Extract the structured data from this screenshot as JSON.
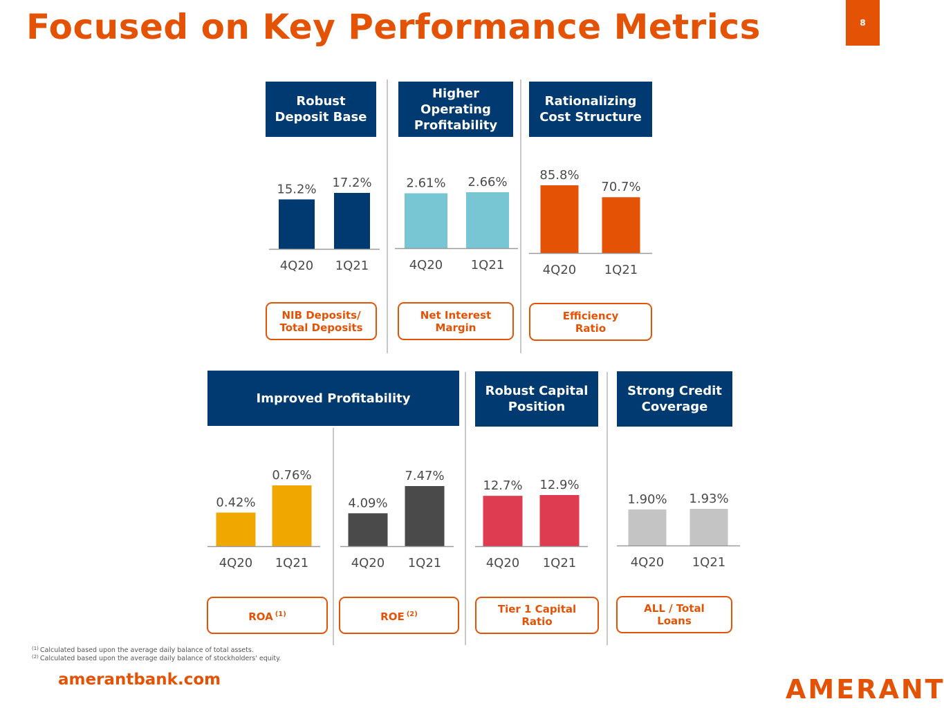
{
  "slide": {
    "title": "Focused on Key Performance Metrics",
    "page_number": "8",
    "website": "amerantbank.com",
    "logo_text": "AMERANT",
    "footnotes": [
      {
        "marker": "(1)",
        "text": "Calculated based upon the average daily balance of total assets."
      },
      {
        "marker": "(2)",
        "text": "Calculated based upon the average daily balance of stockholders' equity."
      }
    ]
  },
  "sections": {
    "deposit": {
      "header": [
        "Robust",
        "Deposit Base"
      ],
      "metric": [
        "NIB Deposits/",
        "Total Deposits"
      ]
    },
    "operating": {
      "header": [
        "Higher",
        "Operating",
        "Profitability"
      ],
      "metric": [
        "Net Interest",
        "Margin"
      ]
    },
    "cost": {
      "header": [
        "Rationalizing",
        "Cost Structure"
      ],
      "metric": [
        "Efficiency",
        "Ratio"
      ]
    },
    "profit": {
      "header": [
        "Improved Profitability"
      ],
      "metric_roa": "ROA",
      "metric_roa_note": "(1)",
      "metric_roe": "ROE",
      "metric_roe_note": "(2)"
    },
    "capital": {
      "header": [
        "Robust Capital",
        "Position"
      ],
      "metric": [
        "Tier 1 Capital",
        "Ratio"
      ]
    },
    "credit": {
      "header": [
        "Strong Credit",
        "Coverage"
      ],
      "metric": [
        "ALL / Total",
        "Loans"
      ]
    }
  },
  "colors": {
    "accent": "#e35205",
    "navy": "#003a70",
    "light_blue": "#78c5d4",
    "gold": "#f0a800",
    "dark_gray": "#4a4a4a",
    "red": "#de3c50",
    "light_gray": "#c4c4c4"
  },
  "chart_data": [
    {
      "id": "nib",
      "type": "bar",
      "title": "NIB Deposits/ Total Deposits",
      "categories": [
        "4Q20",
        "1Q21"
      ],
      "values": [
        15.2,
        17.2
      ],
      "labels": [
        "15.2%",
        "17.2%"
      ],
      "unit": "%",
      "color": "#003a70"
    },
    {
      "id": "nim",
      "type": "bar",
      "title": "Net Interest Margin",
      "categories": [
        "4Q20",
        "1Q21"
      ],
      "values": [
        2.61,
        2.66
      ],
      "labels": [
        "2.61%",
        "2.66%"
      ],
      "unit": "%",
      "color": "#78c5d4"
    },
    {
      "id": "eff",
      "type": "bar",
      "title": "Efficiency Ratio",
      "categories": [
        "4Q20",
        "1Q21"
      ],
      "values": [
        85.8,
        70.7
      ],
      "labels": [
        "85.8%",
        "70.7%"
      ],
      "unit": "%",
      "color": "#e35205"
    },
    {
      "id": "roa",
      "type": "bar",
      "title": "ROA (1)",
      "categories": [
        "4Q20",
        "1Q21"
      ],
      "values": [
        0.42,
        0.76
      ],
      "labels": [
        "0.42%",
        "0.76%"
      ],
      "unit": "%",
      "color": "#f0a800"
    },
    {
      "id": "roe",
      "type": "bar",
      "title": "ROE (2)",
      "categories": [
        "4Q20",
        "1Q21"
      ],
      "values": [
        4.09,
        7.47
      ],
      "labels": [
        "4.09%",
        "7.47%"
      ],
      "unit": "%",
      "color": "#4a4a4a"
    },
    {
      "id": "tier1",
      "type": "bar",
      "title": "Tier 1 Capital Ratio",
      "categories": [
        "4Q20",
        "1Q21"
      ],
      "values": [
        12.7,
        12.9
      ],
      "labels": [
        "12.7%",
        "12.9%"
      ],
      "unit": "%",
      "color": "#de3c50"
    },
    {
      "id": "all",
      "type": "bar",
      "title": "ALL / Total Loans",
      "categories": [
        "4Q20",
        "1Q21"
      ],
      "values": [
        1.9,
        1.93
      ],
      "labels": [
        "1.90%",
        "1.93%"
      ],
      "unit": "%",
      "color": "#c4c4c4"
    }
  ]
}
